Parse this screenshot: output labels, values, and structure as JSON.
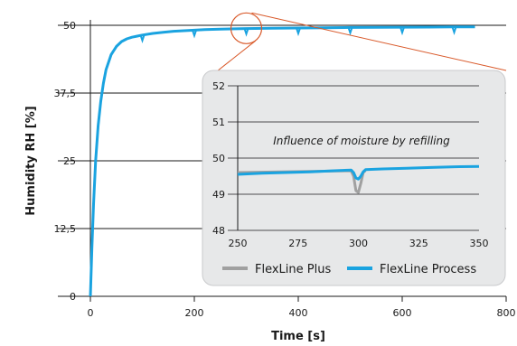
{
  "chart_data": [
    {
      "type": "line",
      "title": "",
      "xlabel": "Time [s]",
      "ylabel": "Humidity RH [%]",
      "xlim": [
        0,
        800
      ],
      "ylim": [
        0,
        50
      ],
      "x_ticks": [
        "0",
        "200",
        "400",
        "600",
        "800"
      ],
      "y_ticks": [
        "0",
        "12,5",
        "25",
        "37,5",
        "50"
      ],
      "grid": "horizontal",
      "series": [
        {
          "name": "FlexLine Process",
          "color": "#1aa3e0",
          "x": [
            0,
            3,
            6,
            10,
            15,
            20,
            25,
            30,
            40,
            50,
            60,
            70,
            80,
            90,
            100,
            120,
            140,
            160,
            180,
            200,
            220,
            250,
            300,
            350,
            400,
            450,
            500,
            550,
            600,
            650,
            700,
            740
          ],
          "y": [
            0,
            9,
            17,
            25,
            31.5,
            36,
            39.3,
            41.8,
            44.6,
            46.1,
            47.0,
            47.5,
            47.8,
            48.0,
            48.2,
            48.5,
            48.7,
            48.9,
            49.0,
            49.1,
            49.2,
            49.3,
            49.4,
            49.45,
            49.5,
            49.55,
            49.6,
            49.62,
            49.65,
            49.67,
            49.7,
            49.72
          ],
          "refill_dips_x": [
            100,
            200,
            300,
            400,
            500,
            600,
            700
          ]
        },
        {
          "name": "FlexLine Plus",
          "color": "#a0a0a0",
          "x": [],
          "y": []
        }
      ],
      "zoom_region": {
        "x": [
          250,
          350
        ],
        "y": [
          48,
          52
        ]
      }
    },
    {
      "type": "line",
      "title": "",
      "xlim": [
        250,
        350
      ],
      "ylim": [
        48,
        52
      ],
      "x_ticks": [
        "250",
        "275",
        "300",
        "325",
        "350"
      ],
      "y_ticks": [
        "48",
        "49",
        "50",
        "51",
        "52"
      ],
      "grid": "horizontal",
      "annotation": "Influence of moisture by refilling",
      "legend": "bottom",
      "series": [
        {
          "name": "FlexLine Plus",
          "color": "#a0a0a0",
          "x": [
            250,
            297,
            298,
            299,
            300,
            301,
            302,
            303
          ],
          "y": [
            49.6,
            49.65,
            49.5,
            49.1,
            49.05,
            49.3,
            49.6,
            49.66
          ]
        },
        {
          "name": "FlexLine Process",
          "color": "#1aa3e0",
          "x": [
            250,
            260,
            270,
            280,
            290,
            297,
            298,
            299,
            300,
            301,
            302,
            303,
            310,
            320,
            330,
            340,
            350
          ],
          "y": [
            49.55,
            49.58,
            49.6,
            49.62,
            49.65,
            49.67,
            49.6,
            49.45,
            49.42,
            49.5,
            49.62,
            49.68,
            49.7,
            49.72,
            49.74,
            49.76,
            49.77
          ]
        }
      ]
    }
  ]
}
